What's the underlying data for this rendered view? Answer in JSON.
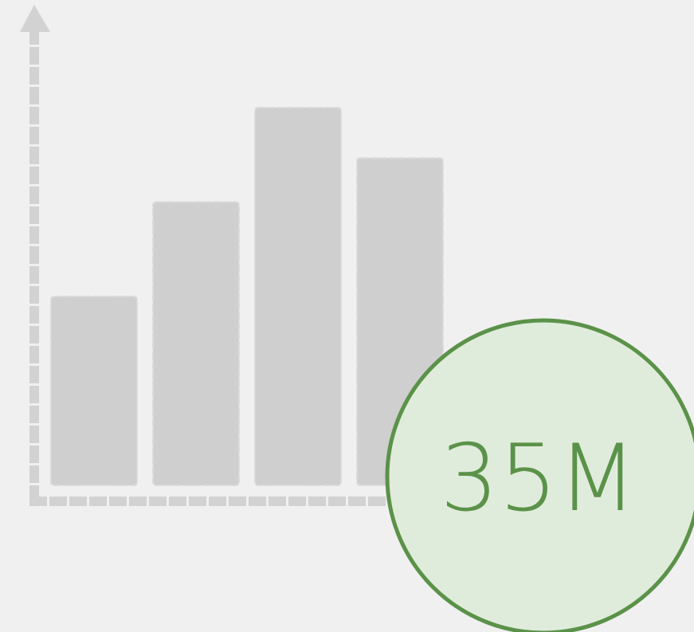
{
  "chart_data": {
    "type": "bar",
    "categories": [
      "",
      "",
      "",
      ""
    ],
    "values": [
      30,
      45,
      60,
      52
    ],
    "ylim": [
      0,
      65
    ],
    "grid": false,
    "bar_color": "#cfcfcf",
    "axis_color": "#d2d2d2"
  },
  "badge": {
    "text": "35M",
    "fill_color": "#e0ecdb",
    "stroke_color": "#5b9249",
    "text_color": "#5b9249"
  },
  "icons": {
    "axis_arrow": "arrow-up-icon"
  },
  "colors": {
    "background": "#f0f0f0"
  }
}
